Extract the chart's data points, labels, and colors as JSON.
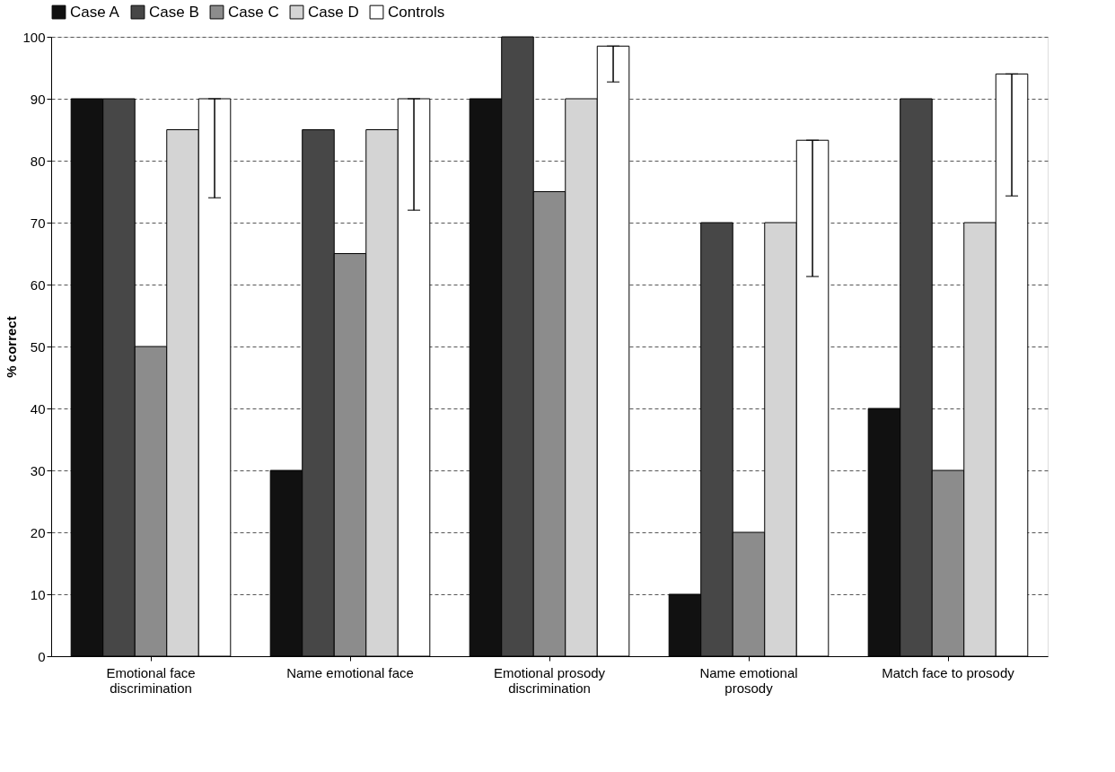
{
  "chart_data": {
    "type": "bar",
    "ylabel": "% correct",
    "categories": [
      "Emotional face discrimination",
      "Name emotional face",
      "Emotional prosody discrimination",
      "Name emotional prosody",
      "Match face to prosody"
    ],
    "series": [
      {
        "name": "Case A",
        "color": "#111111",
        "values": [
          90,
          30,
          90,
          10,
          40
        ]
      },
      {
        "name": "Case B",
        "color": "#474747",
        "values": [
          90,
          85,
          100,
          70,
          90
        ]
      },
      {
        "name": "Case C",
        "color": "#8c8c8c",
        "values": [
          50,
          65,
          75,
          20,
          30
        ]
      },
      {
        "name": "Case D",
        "color": "#d4d4d4",
        "values": [
          85,
          85,
          90,
          70,
          70
        ]
      },
      {
        "name": "Controls",
        "color": "#ffffff",
        "values": [
          90,
          90,
          98.5,
          83.3,
          94
        ],
        "errors": [
          [
            74,
            90
          ],
          [
            72,
            90
          ],
          [
            92.7,
            98.5
          ],
          [
            61.3,
            83.3
          ],
          [
            74.3,
            94
          ]
        ]
      }
    ],
    "ylim": [
      0,
      100
    ],
    "yticks": [
      0,
      10,
      20,
      30,
      40,
      50,
      60,
      70,
      80,
      90,
      100
    ],
    "grid": "y",
    "legend": "top"
  }
}
